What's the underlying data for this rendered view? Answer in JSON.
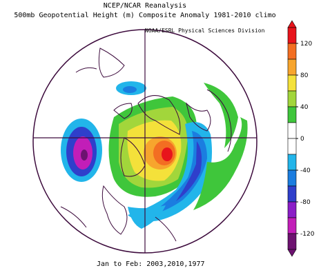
{
  "title_line1": "NCEP/NCAR Reanalysis",
  "title_line2": "500mb Geopotential Height (m) Composite Anomaly 1981-2010 climo",
  "credit": "NOAA/ESRL Physical Sciences Division",
  "footer": "Jan to Feb: 2003,2010,1977",
  "colorbar": {
    "ticks": [
      "120",
      "80",
      "40",
      "0",
      "-40",
      "-80",
      "-120"
    ],
    "colors": [
      "#e8141c",
      "#f36e22",
      "#f7a52d",
      "#f4e13a",
      "#a2d63b",
      "#3fc63b",
      "#ffffff",
      "#ffffff",
      "#22b5ea",
      "#1b7de0",
      "#2f3fcb",
      "#8b1ec7",
      "#c21eb8",
      "#6d1270"
    ]
  }
}
